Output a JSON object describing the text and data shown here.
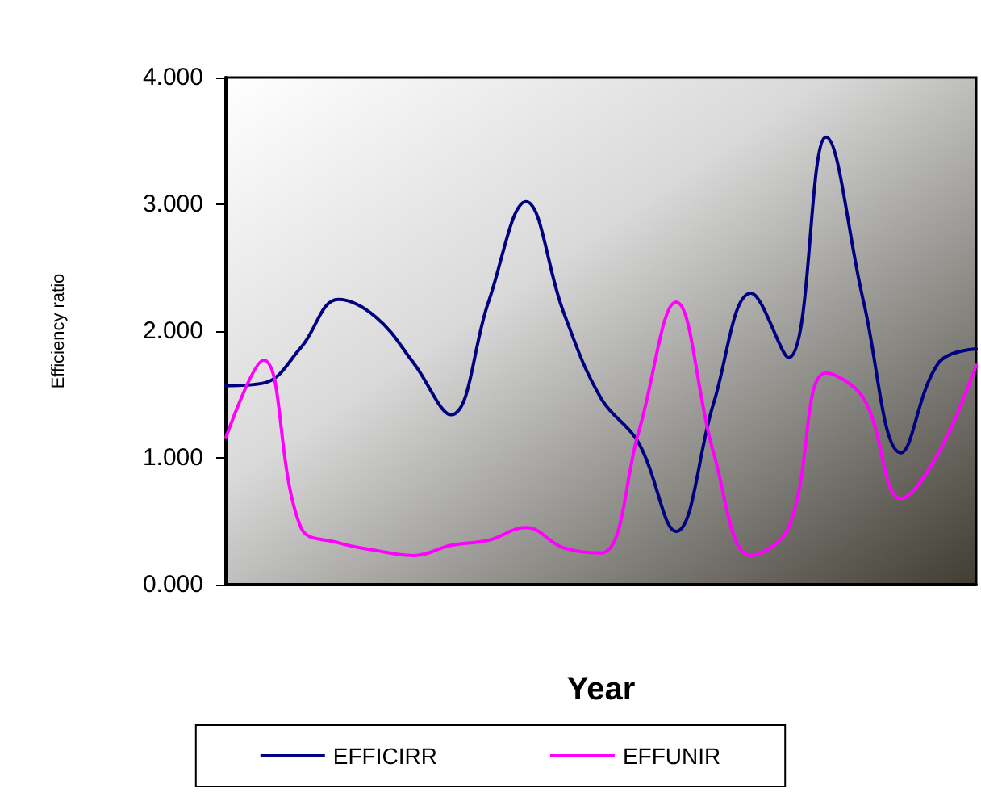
{
  "chart_data": {
    "type": "line",
    "xlabel": "Year",
    "ylabel": "Efficiency ratio",
    "categories": [
      null,
      null,
      null,
      null,
      null,
      null,
      null,
      null,
      null,
      null,
      null,
      null,
      null,
      null,
      null,
      null,
      null,
      null,
      null,
      null,
      null
    ],
    "series": [
      {
        "name": "EFFICIRR",
        "color": "#000080",
        "values": [
          1.57,
          1.59,
          1.87,
          2.25,
          2.11,
          1.75,
          1.34,
          2.23,
          3.02,
          2.15,
          1.47,
          1.12,
          0.42,
          1.43,
          2.3,
          1.79,
          3.53,
          2.23,
          1.04,
          1.75,
          1.86
        ]
      },
      {
        "name": "EFFUNIR",
        "color": "#ff00ff",
        "values": [
          1.16,
          1.77,
          0.45,
          0.33,
          0.27,
          0.23,
          0.31,
          0.35,
          0.45,
          0.29,
          0.25,
          1.2,
          2.23,
          1.04,
          0.23,
          0.45,
          1.67,
          1.47,
          0.68,
          1.04,
          1.73
        ]
      }
    ],
    "ylim": [
      0,
      4
    ],
    "yticks": [
      {
        "value": 0,
        "label": "0.000"
      },
      {
        "value": 1,
        "label": "1.000"
      },
      {
        "value": 2,
        "label": "2.000"
      },
      {
        "value": 3,
        "label": "3.000"
      },
      {
        "value": 4,
        "label": "4.000"
      }
    ],
    "grid": false,
    "legend": "bottom",
    "marker": "none",
    "line_style": "solid"
  }
}
